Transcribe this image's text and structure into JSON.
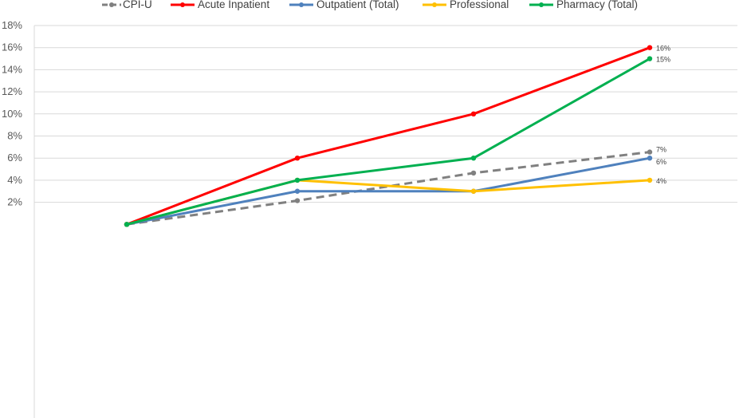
{
  "chart_data": {
    "type": "line",
    "title": "",
    "xlabel": "",
    "ylabel": "",
    "ylim": [
      0,
      18
    ],
    "y_ticks": [
      "2%",
      "4%",
      "6%",
      "8%",
      "10%",
      "12%",
      "14%",
      "16%",
      "18%"
    ],
    "y_tick_values": [
      2,
      4,
      6,
      8,
      10,
      12,
      14,
      16,
      18
    ],
    "x_count": 4,
    "grid": "horizontal",
    "legend_position": "top",
    "series": [
      {
        "name": "CPI-U",
        "color": "#808080",
        "dashed": true,
        "values": [
          0,
          2.15,
          4.65,
          6.55
        ],
        "end_label": "7%"
      },
      {
        "name": "Acute Inpatient",
        "color": "#ff0000",
        "dashed": false,
        "values": [
          0,
          6,
          10,
          16
        ],
        "end_label": "16%"
      },
      {
        "name": "Outpatient (Total)",
        "color": "#4f81bd",
        "dashed": false,
        "values": [
          0,
          3,
          3,
          6
        ],
        "end_label": "6%"
      },
      {
        "name": "Professional",
        "color": "#ffc000",
        "dashed": false,
        "values": [
          0,
          4,
          3,
          4
        ],
        "end_label": "4%"
      },
      {
        "name": "Pharmacy (Total)",
        "color": "#00b050",
        "dashed": false,
        "values": [
          0,
          4,
          6,
          15
        ],
        "end_label": "15%"
      }
    ]
  }
}
